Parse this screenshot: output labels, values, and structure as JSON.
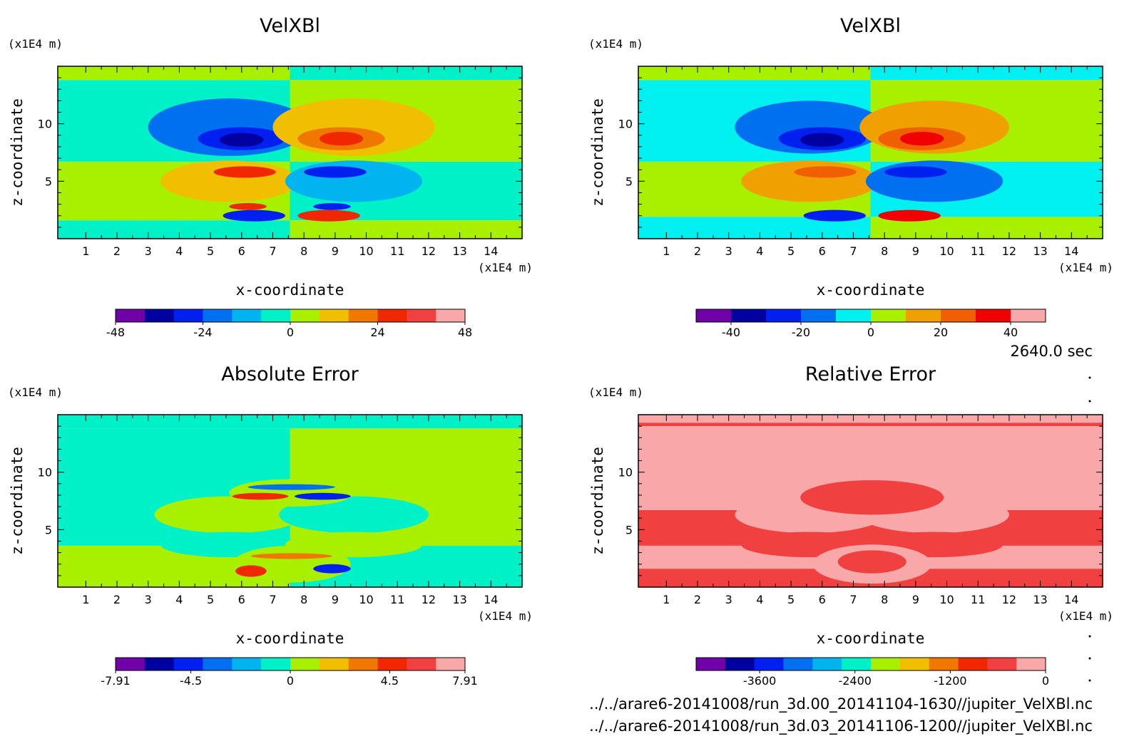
{
  "footer": {
    "time": "2640.0 sec",
    "file1": "../../arare6-20141008/run_3d.00_20141104-1630//jupiter_VelXBl.nc",
    "file2": "../../arare6-20141008/run_3d.03_20141106-1200//jupiter_VelXBl.nc"
  },
  "chart_data": [
    {
      "type": "heatmap",
      "title": "VelXBl",
      "xlabel": "x-coordinate",
      "ylabel": "z-coordinate",
      "xunit": "(x1E4 m)",
      "yunit": "(x1E4 m)",
      "xlim": [
        0.1,
        15.0
      ],
      "ylim": [
        0.0,
        15.0
      ],
      "xticks": [
        "1",
        "2",
        "3",
        "4",
        "5",
        "6",
        "7",
        "8",
        "9",
        "10",
        "11",
        "12",
        "13",
        "14"
      ],
      "yticks": [
        "5",
        "10"
      ],
      "colorbar": {
        "colors": [
          "#7000a8",
          "#0000a0",
          "#0020f0",
          "#0070f0",
          "#00b4f0",
          "#00f0c8",
          "#a8f000",
          "#f0c000",
          "#f07800",
          "#f02800",
          "#f04040",
          "#f8a8a8"
        ],
        "tick_labels": [
          "-48",
          "-24",
          "0",
          "24",
          "48"
        ],
        "tick_values": [
          -48,
          -24,
          0,
          24,
          48
        ],
        "range": [
          -48,
          48
        ]
      },
      "field": {
        "background": [
          {
            "z": [
              13.8,
              15.0
            ],
            "left": "#a8f000",
            "right": "#00f0c8"
          },
          {
            "z": [
              6.7,
              13.8
            ],
            "left": "#00f0c8",
            "right": "#a8f000"
          },
          {
            "z": [
              1.6,
              6.7
            ],
            "left": "#a8f000",
            "right": "#00f0c8"
          },
          {
            "z": [
              0.0,
              1.6
            ],
            "left": "#00f0c8",
            "right": "#a8f000"
          }
        ],
        "split_x": 7.55,
        "blobs": [
          {
            "x": 5.6,
            "z": 9.7,
            "rx": 2.6,
            "rz": 2.5,
            "color": "#0070f0"
          },
          {
            "x": 6.0,
            "z": 8.7,
            "rx": 1.4,
            "rz": 1.0,
            "color": "#0020f0"
          },
          {
            "x": 6.0,
            "z": 8.6,
            "rx": 0.7,
            "rz": 0.6,
            "color": "#0000a0"
          },
          {
            "x": 9.6,
            "z": 9.7,
            "rx": 2.6,
            "rz": 2.5,
            "color": "#f0c000"
          },
          {
            "x": 9.2,
            "z": 8.7,
            "rx": 1.4,
            "rz": 1.0,
            "color": "#f07800"
          },
          {
            "x": 9.2,
            "z": 8.7,
            "rx": 0.7,
            "rz": 0.6,
            "color": "#f02800"
          },
          {
            "x": 5.6,
            "z": 5.0,
            "rx": 2.2,
            "rz": 1.8,
            "color": "#f0c000"
          },
          {
            "x": 6.1,
            "z": 5.8,
            "rx": 1.0,
            "rz": 0.5,
            "color": "#f02800"
          },
          {
            "x": 9.6,
            "z": 5.0,
            "rx": 2.2,
            "rz": 1.8,
            "color": "#00b4f0"
          },
          {
            "x": 9.0,
            "z": 5.8,
            "rx": 1.0,
            "rz": 0.5,
            "color": "#0020f0"
          },
          {
            "x": 6.4,
            "z": 2.0,
            "rx": 1.0,
            "rz": 0.5,
            "color": "#0020f0"
          },
          {
            "x": 6.2,
            "z": 2.8,
            "rx": 0.6,
            "rz": 0.3,
            "color": "#f02800"
          },
          {
            "x": 8.8,
            "z": 2.0,
            "rx": 1.0,
            "rz": 0.5,
            "color": "#f02800"
          },
          {
            "x": 8.9,
            "z": 2.8,
            "rx": 0.6,
            "rz": 0.3,
            "color": "#0020f0"
          }
        ]
      }
    },
    {
      "type": "heatmap",
      "title": "VelXBl",
      "xlabel": "x-coordinate",
      "ylabel": "z-coordinate",
      "xunit": "(x1E4 m)",
      "yunit": "(x1E4 m)",
      "xlim": [
        0.1,
        15.0
      ],
      "ylim": [
        0.0,
        15.0
      ],
      "xticks": [
        "1",
        "2",
        "3",
        "4",
        "5",
        "6",
        "7",
        "8",
        "9",
        "10",
        "11",
        "12",
        "13",
        "14"
      ],
      "yticks": [
        "5",
        "10"
      ],
      "colorbar": {
        "colors": [
          "#7000a8",
          "#0000a0",
          "#0020f0",
          "#0070f0",
          "#00f0f0",
          "#a8f000",
          "#f0a000",
          "#f06000",
          "#f00000",
          "#f8a8a8"
        ],
        "tick_labels": [
          "-40",
          "-20",
          "0",
          "20",
          "40"
        ],
        "tick_values": [
          -40,
          -20,
          0,
          20,
          40
        ],
        "range": [
          -50,
          50
        ]
      },
      "field": {
        "background": [
          {
            "z": [
              13.8,
              15.0
            ],
            "left": "#a8f000",
            "right": "#00f0f0"
          },
          {
            "z": [
              6.7,
              13.8
            ],
            "left": "#00f0f0",
            "right": "#a8f000"
          },
          {
            "z": [
              1.9,
              6.7
            ],
            "left": "#a8f000",
            "right": "#00f0f0"
          },
          {
            "z": [
              0.0,
              1.9
            ],
            "left": "#00f0f0",
            "right": "#a8f000"
          }
        ],
        "split_x": 7.55,
        "blobs": [
          {
            "x": 5.6,
            "z": 9.7,
            "rx": 2.4,
            "rz": 2.3,
            "color": "#0070f0"
          },
          {
            "x": 6.0,
            "z": 8.7,
            "rx": 1.4,
            "rz": 1.0,
            "color": "#0020f0"
          },
          {
            "x": 6.0,
            "z": 8.6,
            "rx": 0.7,
            "rz": 0.6,
            "color": "#0000a0"
          },
          {
            "x": 9.6,
            "z": 9.7,
            "rx": 2.4,
            "rz": 2.3,
            "color": "#f0a000"
          },
          {
            "x": 9.2,
            "z": 8.7,
            "rx": 1.4,
            "rz": 1.0,
            "color": "#f06000"
          },
          {
            "x": 9.2,
            "z": 8.7,
            "rx": 0.7,
            "rz": 0.6,
            "color": "#f00000"
          },
          {
            "x": 5.6,
            "z": 5.0,
            "rx": 2.2,
            "rz": 1.8,
            "color": "#f0a000"
          },
          {
            "x": 6.1,
            "z": 5.8,
            "rx": 1.0,
            "rz": 0.5,
            "color": "#f06000"
          },
          {
            "x": 9.6,
            "z": 5.0,
            "rx": 2.2,
            "rz": 1.8,
            "color": "#0070f0"
          },
          {
            "x": 9.0,
            "z": 5.8,
            "rx": 1.0,
            "rz": 0.5,
            "color": "#0020f0"
          },
          {
            "x": 6.4,
            "z": 2.0,
            "rx": 1.0,
            "rz": 0.5,
            "color": "#0020f0"
          },
          {
            "x": 8.8,
            "z": 2.0,
            "rx": 1.0,
            "rz": 0.5,
            "color": "#f00000"
          }
        ]
      }
    },
    {
      "type": "heatmap",
      "title": "Absolute Error",
      "xlabel": "x-coordinate",
      "ylabel": "z-coordinate",
      "xunit": "(x1E4 m)",
      "yunit": "(x1E4 m)",
      "xlim": [
        0.1,
        15.0
      ],
      "ylim": [
        0.0,
        15.0
      ],
      "xticks": [
        "1",
        "2",
        "3",
        "4",
        "5",
        "6",
        "7",
        "8",
        "9",
        "10",
        "11",
        "12",
        "13",
        "14"
      ],
      "yticks": [
        "5",
        "10"
      ],
      "colorbar": {
        "colors": [
          "#7000a8",
          "#0000a0",
          "#0020f0",
          "#0070f0",
          "#00b4f0",
          "#00f0c8",
          "#a8f000",
          "#f0c000",
          "#f07800",
          "#f02800",
          "#f04040",
          "#f8a8a8"
        ],
        "tick_labels": [
          "-7.91",
          "-4.5",
          "0",
          "4.5",
          "7.91"
        ],
        "tick_values": [
          -7.91,
          -4.5,
          0,
          4.5,
          7.91
        ],
        "range": [
          -7.91,
          7.91
        ]
      },
      "field": {
        "background": [
          {
            "z": [
              13.8,
              15.0
            ],
            "left": "#00f0c8",
            "right": "#00f0c8"
          },
          {
            "z": [
              3.6,
              13.8
            ],
            "left": "#00f0c8",
            "right": "#a8f000"
          },
          {
            "z": [
              0.0,
              3.6
            ],
            "left": "#a8f000",
            "right": "#00f0c8"
          }
        ],
        "split_x": 7.55,
        "blobs": [
          {
            "x": 5.6,
            "z": 6.3,
            "rx": 2.4,
            "rz": 1.6,
            "color": "#a8f000"
          },
          {
            "x": 9.6,
            "z": 6.3,
            "rx": 2.4,
            "rz": 1.6,
            "color": "#00f0c8"
          },
          {
            "x": 7.6,
            "z": 8.2,
            "rx": 2.0,
            "rz": 1.2,
            "color": "#a8f000"
          },
          {
            "x": 6.6,
            "z": 7.9,
            "rx": 0.9,
            "rz": 0.3,
            "color": "#f02800"
          },
          {
            "x": 8.6,
            "z": 7.9,
            "rx": 0.9,
            "rz": 0.3,
            "color": "#0020f0"
          },
          {
            "x": 7.6,
            "z": 8.7,
            "rx": 1.4,
            "rz": 0.25,
            "color": "#0070f0"
          },
          {
            "x": 5.6,
            "z": 3.7,
            "rx": 2.2,
            "rz": 1.1,
            "color": "#00f0c8"
          },
          {
            "x": 9.6,
            "z": 3.7,
            "rx": 2.2,
            "rz": 1.1,
            "color": "#a8f000"
          },
          {
            "x": 7.6,
            "z": 2.0,
            "rx": 1.9,
            "rz": 1.6,
            "color": "#a8f000"
          },
          {
            "x": 6.3,
            "z": 1.4,
            "rx": 0.5,
            "rz": 0.5,
            "color": "#f02800"
          },
          {
            "x": 8.9,
            "z": 1.6,
            "rx": 0.6,
            "rz": 0.4,
            "color": "#0020f0"
          },
          {
            "x": 7.6,
            "z": 2.7,
            "rx": 1.3,
            "rz": 0.25,
            "color": "#f07800"
          }
        ]
      }
    },
    {
      "type": "heatmap",
      "title": "Relative Error",
      "xlabel": "x-coordinate",
      "ylabel": "z-coordinate",
      "xunit": "(x1E4 m)",
      "yunit": "(x1E4 m)",
      "xlim": [
        0.1,
        15.0
      ],
      "ylim": [
        0.0,
        15.0
      ],
      "xticks": [
        "1",
        "2",
        "3",
        "4",
        "5",
        "6",
        "7",
        "8",
        "9",
        "10",
        "11",
        "12",
        "13",
        "14"
      ],
      "yticks": [
        "5",
        "10"
      ],
      "colorbar": {
        "colors": [
          "#7000a8",
          "#0000a0",
          "#0020f0",
          "#0070f0",
          "#00b4f0",
          "#00f0c8",
          "#a8f000",
          "#f0c000",
          "#f07800",
          "#f02800",
          "#f04040",
          "#f8a8a8"
        ],
        "tick_labels": [
          "-3600",
          "-2400",
          "-1200",
          "0"
        ],
        "tick_values": [
          -3600,
          -2400,
          -1200,
          0
        ],
        "range": [
          -4400,
          0
        ]
      },
      "field": {
        "background": [
          {
            "z": [
              14.3,
              15.0
            ],
            "left": "#f8a8a8",
            "right": "#f8a8a8"
          },
          {
            "z": [
              14.0,
              14.3
            ],
            "left": "#f04040",
            "right": "#f04040"
          },
          {
            "z": [
              6.7,
              14.0
            ],
            "left": "#f8a8a8",
            "right": "#f8a8a8"
          },
          {
            "z": [
              3.6,
              6.7
            ],
            "left": "#f04040",
            "right": "#f04040"
          },
          {
            "z": [
              1.6,
              3.6
            ],
            "left": "#f8a8a8",
            "right": "#f8a8a8"
          },
          {
            "z": [
              0.0,
              1.6
            ],
            "left": "#f04040",
            "right": "#f04040"
          }
        ],
        "split_x": 7.55,
        "blobs": [
          {
            "x": 5.6,
            "z": 6.3,
            "rx": 2.4,
            "rz": 1.6,
            "color": "#f8a8a8"
          },
          {
            "x": 9.6,
            "z": 6.3,
            "rx": 2.4,
            "rz": 1.6,
            "color": "#f8a8a8"
          },
          {
            "x": 7.6,
            "z": 7.8,
            "rx": 2.3,
            "rz": 1.5,
            "color": "#f04040"
          },
          {
            "x": 5.6,
            "z": 3.7,
            "rx": 2.2,
            "rz": 1.1,
            "color": "#f04040"
          },
          {
            "x": 9.6,
            "z": 3.7,
            "rx": 2.2,
            "rz": 1.1,
            "color": "#f04040"
          },
          {
            "x": 7.6,
            "z": 2.0,
            "rx": 1.9,
            "rz": 1.7,
            "color": "#f8a8a8"
          },
          {
            "x": 7.6,
            "z": 2.2,
            "rx": 1.1,
            "rz": 1.0,
            "color": "#f04040"
          }
        ]
      }
    }
  ]
}
